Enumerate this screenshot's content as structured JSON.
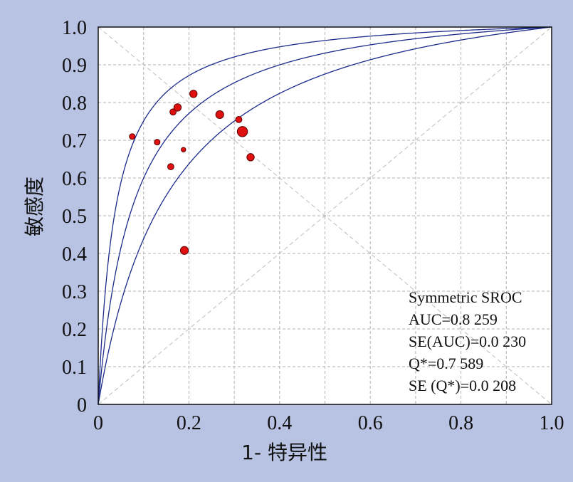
{
  "chart_data": {
    "type": "scatter",
    "xlabel": "1- 特异性",
    "ylabel": "敏感度",
    "xlim": [
      0,
      1.0
    ],
    "ylim": [
      0,
      1.0
    ],
    "x_ticks": [
      "0",
      "0.2",
      "0.4",
      "0.6",
      "0.8",
      "1.0"
    ],
    "y_ticks": [
      "0",
      "0.1",
      "0.2",
      "0.3",
      "0.4",
      "0.5",
      "0.6",
      "0.7",
      "0.8",
      "0.9",
      "1.0"
    ],
    "grid": true,
    "points": [
      {
        "x": 0.075,
        "y": 0.71,
        "size": 1.0
      },
      {
        "x": 0.13,
        "y": 0.695,
        "size": 1.0
      },
      {
        "x": 0.16,
        "y": 0.63,
        "size": 1.1
      },
      {
        "x": 0.165,
        "y": 0.775,
        "size": 1.1
      },
      {
        "x": 0.175,
        "y": 0.787,
        "size": 1.3
      },
      {
        "x": 0.188,
        "y": 0.675,
        "size": 0.8
      },
      {
        "x": 0.19,
        "y": 0.408,
        "size": 1.4
      },
      {
        "x": 0.21,
        "y": 0.823,
        "size": 1.3
      },
      {
        "x": 0.268,
        "y": 0.768,
        "size": 1.4
      },
      {
        "x": 0.31,
        "y": 0.755,
        "size": 1.1
      },
      {
        "x": 0.318,
        "y": 0.723,
        "size": 1.8
      },
      {
        "x": 0.336,
        "y": 0.655,
        "size": 1.3
      }
    ],
    "sroc_curves": [
      {
        "auc": 0.8259,
        "shape": "sroc"
      },
      {
        "auc": 0.8259,
        "shape": "upper"
      },
      {
        "auc": 0.8259,
        "shape": "lower"
      }
    ],
    "curve_color": "#1c2a8c",
    "point_color": "#e01010",
    "background": "#b8c3e3",
    "annotation": [
      "Symmetric SROC",
      "AUC=0.8 259",
      "SE(AUC)=0.0 230",
      "Q*=0.7 589",
      "SE (Q*)=0.0 208"
    ]
  }
}
